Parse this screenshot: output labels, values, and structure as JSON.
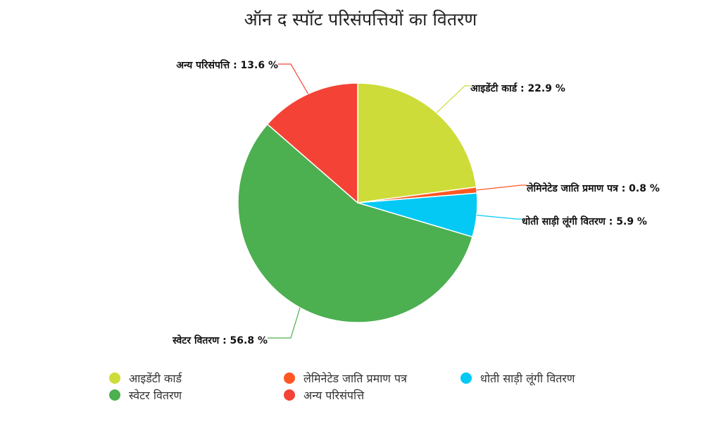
{
  "chart_data": {
    "type": "pie",
    "title": "ऑन द स्पॉट परिसंपत्तियों का वितरण",
    "legend_position": "bottom",
    "slices": [
      {
        "name": "आइडेंटी कार्ड",
        "value": 22.9,
        "label": "आइडेंटी कार्ड : 22.9 %",
        "color": "#cddc39"
      },
      {
        "name": "लेमिनेटेड जाति प्रमाण पत्र",
        "value": 0.8,
        "label": "लेमिनेटेड जाति प्रमाण पत्र : 0.8 %",
        "color": "#ff5722"
      },
      {
        "name": "धोती साड़ी लूंगी वितरण",
        "value": 5.9,
        "label": "धोती साड़ी लूंगी वितरण : 5.9 %",
        "color": "#03c9f4"
      },
      {
        "name": "स्वेटर वितरण",
        "value": 56.8,
        "label": "स्वेटर वितरण : 56.8 %",
        "color": "#4caf50"
      },
      {
        "name": "अन्य परिसंपत्ति",
        "value": 13.6,
        "label": "अन्य परिसंपत्ति : 13.6 %",
        "color": "#f44336"
      }
    ]
  }
}
